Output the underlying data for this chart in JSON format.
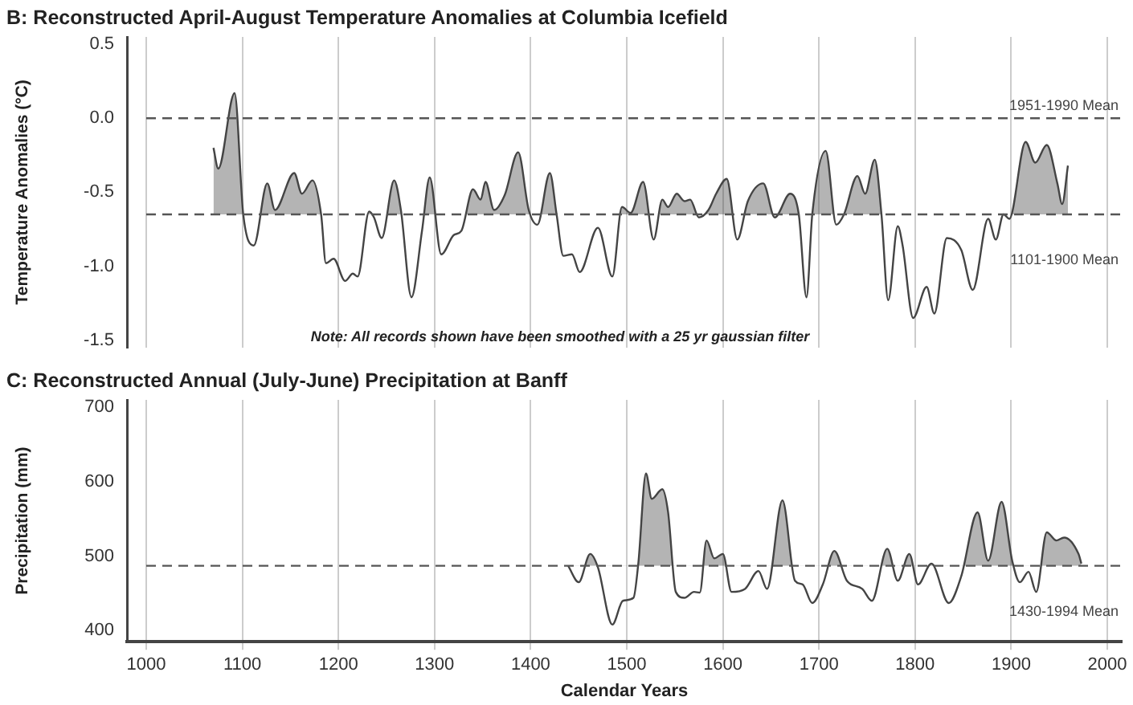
{
  "chart_data": [
    {
      "type": "line",
      "title": "B: Reconstructed April-August Temperature Anomalies at Columbia Icefield",
      "ylabel": "Temperature Anomalies (°C)",
      "x": [
        1070,
        1075,
        1092,
        1101,
        1112,
        1126,
        1134,
        1154,
        1162,
        1173,
        1182,
        1187,
        1195,
        1207,
        1215,
        1220,
        1232,
        1237,
        1245,
        1258,
        1265,
        1276,
        1287,
        1295,
        1307,
        1320,
        1328,
        1340,
        1348,
        1353,
        1362,
        1373,
        1387,
        1398,
        1407,
        1420,
        1427,
        1434,
        1443,
        1451,
        1470,
        1485,
        1495,
        1504,
        1517,
        1528,
        1537,
        1543,
        1552,
        1560,
        1566,
        1575,
        1585,
        1593,
        1604,
        1615,
        1626,
        1642,
        1654,
        1670,
        1679,
        1687,
        1693,
        1707,
        1718,
        1726,
        1740,
        1748,
        1758,
        1765,
        1772,
        1782,
        1787,
        1798,
        1812,
        1820,
        1833,
        1848,
        1860,
        1876,
        1884,
        1892,
        1898,
        1915,
        1925,
        1937,
        1948,
        1953,
        1959
      ],
      "series": [
        {
          "color": "#444444",
          "values": [
            -0.2,
            -0.34,
            0.17,
            -0.65,
            -0.86,
            -0.44,
            -0.62,
            -0.37,
            -0.51,
            -0.42,
            -0.65,
            -0.98,
            -0.95,
            -1.1,
            -1.05,
            -1.07,
            -0.63,
            -0.67,
            -0.81,
            -0.42,
            -0.62,
            -1.21,
            -0.76,
            -0.4,
            -0.92,
            -0.79,
            -0.76,
            -0.48,
            -0.55,
            -0.43,
            -0.62,
            -0.52,
            -0.23,
            -0.62,
            -0.72,
            -0.37,
            -0.65,
            -0.93,
            -0.92,
            -1.04,
            -0.74,
            -1.07,
            -0.6,
            -0.64,
            -0.43,
            -0.82,
            -0.55,
            -0.6,
            -0.51,
            -0.56,
            -0.55,
            -0.67,
            -0.62,
            -0.51,
            -0.41,
            -0.82,
            -0.56,
            -0.44,
            -0.67,
            -0.51,
            -0.65,
            -1.21,
            -0.65,
            -0.22,
            -0.72,
            -0.65,
            -0.39,
            -0.51,
            -0.28,
            -0.65,
            -1.23,
            -0.73,
            -0.86,
            -1.35,
            -1.14,
            -1.32,
            -0.81,
            -0.89,
            -1.16,
            -0.68,
            -0.82,
            -0.65,
            -0.68,
            -0.16,
            -0.3,
            -0.18,
            -0.44,
            -0.58,
            -0.32
          ]
        }
      ],
      "xlim": [
        980,
        2015
      ],
      "xticks": [
        1000,
        1100,
        1200,
        1300,
        1400,
        1500,
        1600,
        1700,
        1800,
        1900,
        2000
      ],
      "ylim": [
        -1.55,
        0.55
      ],
      "yticks": [
        0.5,
        {
          "value": 0,
          "label": "0.0"
        },
        -0.5,
        {
          "value": -1,
          "label": "-1.0"
        },
        -1.5
      ],
      "grid": "x",
      "tick_labels": "y",
      "marker": "none",
      "line_style": "solid",
      "ref_lines": [
        {
          "axis": "y",
          "value": 0,
          "label": "1951-1990 Mean",
          "line_style": "dashed",
          "color": "#555555"
        },
        {
          "axis": "y",
          "value": -0.65,
          "label": "1101-1900 Mean",
          "line_style": "dashed",
          "color": "#555555"
        }
      ],
      "annotations": [
        "Note: All records shown have been smoothed with a 25 yr gaussian filter"
      ]
    },
    {
      "type": "line",
      "title": "C: Reconstructed Annual (July-June) Precipitation at Banff",
      "ylabel": "Precipitation (mm)",
      "xlabel": "Calendar Years",
      "x": [
        1439,
        1450,
        1462,
        1470,
        1485,
        1496,
        1507,
        1512,
        1520,
        1526,
        1537,
        1543,
        1551,
        1560,
        1570,
        1576,
        1583,
        1591,
        1600,
        1609,
        1623,
        1637,
        1646,
        1662,
        1675,
        1683,
        1693,
        1704,
        1716,
        1729,
        1745,
        1755,
        1771,
        1782,
        1794,
        1803,
        1817,
        1835,
        1848,
        1865,
        1876,
        1890,
        1901,
        1909,
        1918,
        1926,
        1937,
        1947,
        1955,
        1970,
        1973
      ],
      "series": [
        {
          "color": "#444444",
          "values": [
            487,
            465,
            503,
            485,
            408,
            440,
            444,
            490,
            611,
            577,
            590,
            559,
            452,
            444,
            452,
            451,
            521,
            497,
            503,
            452,
            456,
            480,
            456,
            575,
            467,
            462,
            437,
            462,
            507,
            467,
            456,
            440,
            510,
            467,
            503,
            462,
            490,
            437,
            473,
            559,
            494,
            573,
            494,
            465,
            479,
            452,
            532,
            521,
            525,
            503,
            490
          ]
        }
      ],
      "xlim": [
        980,
        2015
      ],
      "xticks": [
        1000,
        1100,
        1200,
        1300,
        1400,
        1500,
        1600,
        1700,
        1800,
        1900,
        2000
      ],
      "ylim": [
        385,
        710
      ],
      "yticks": [
        400,
        500,
        600,
        700
      ],
      "grid": "x",
      "marker": "none",
      "line_style": "solid",
      "ref_lines": [
        {
          "axis": "y",
          "value": 487,
          "label": "1430-1994 Mean",
          "line_style": "dashed",
          "color": "#555555"
        }
      ]
    }
  ]
}
